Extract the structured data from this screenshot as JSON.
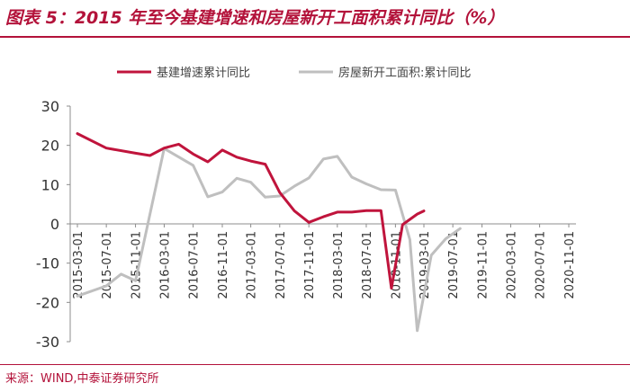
{
  "title": "图表 5：2015 年至今基建增速和房屋新开工面积累计同比（%）",
  "source": "来源：WIND,中泰证券研究所",
  "colors": {
    "accent": "#b3123a",
    "series1": "#c0143c",
    "series2": "#bfbfbf"
  },
  "chart_data": {
    "type": "line",
    "legend_position": "top",
    "grid": false,
    "ylim": [
      -30,
      30
    ],
    "yticks": [
      -30,
      -20,
      -10,
      0,
      10,
      20,
      30
    ],
    "xticks": [
      "2015-03-01",
      "2015-07-01",
      "2015-11-01",
      "2016-03-01",
      "2016-07-01",
      "2016-11-01",
      "2017-03-01",
      "2017-07-01",
      "2017-11-01",
      "2018-03-01",
      "2018-07-01",
      "2018-11-01",
      "2019-03-01",
      "2019-07-01",
      "2019-11-01",
      "2020-03-01",
      "2020-07-01",
      "2020-11-01"
    ],
    "series": [
      {
        "name": "基建增速累计同比",
        "points": [
          [
            "2015-03-01",
            23.0
          ],
          [
            "2015-07-01",
            19.3
          ],
          [
            "2015-11-01",
            18.0
          ],
          [
            "2016-01-01",
            17.4
          ],
          [
            "2016-03-01",
            19.3
          ],
          [
            "2016-05-01",
            20.3
          ],
          [
            "2016-07-01",
            17.8
          ],
          [
            "2016-09-01",
            15.8
          ],
          [
            "2016-11-01",
            18.8
          ],
          [
            "2017-01-01",
            17.0
          ],
          [
            "2017-03-01",
            16.0
          ],
          [
            "2017-05-01",
            15.2
          ],
          [
            "2017-07-01",
            8.0
          ],
          [
            "2017-09-01",
            3.3
          ],
          [
            "2017-11-01",
            0.4
          ],
          [
            "2018-01-01",
            1.8
          ],
          [
            "2018-03-01",
            3.0
          ],
          [
            "2018-05-01",
            3.0
          ],
          [
            "2018-07-01",
            3.4
          ],
          [
            "2018-09-01",
            3.4
          ],
          [
            "2018-10-15",
            -16.4
          ],
          [
            "2018-12-01",
            -0.2
          ],
          [
            "2019-02-01",
            2.5
          ],
          [
            "2019-03-01",
            3.3
          ]
        ]
      },
      {
        "name": "房屋新开工面积:累计同比",
        "points": [
          [
            "2015-03-01",
            -18.4
          ],
          [
            "2015-07-01",
            -15.8
          ],
          [
            "2015-09-01",
            -12.8
          ],
          [
            "2015-11-01",
            -14.5
          ],
          [
            "2016-03-01",
            19.2
          ],
          [
            "2016-07-01",
            14.9
          ],
          [
            "2016-09-01",
            6.9
          ],
          [
            "2016-11-01",
            8.1
          ],
          [
            "2017-01-01",
            11.6
          ],
          [
            "2017-03-01",
            10.6
          ],
          [
            "2017-05-01",
            6.8
          ],
          [
            "2017-07-01",
            7.1
          ],
          [
            "2017-09-01",
            9.6
          ],
          [
            "2017-11-01",
            11.7
          ],
          [
            "2018-01-01",
            16.5
          ],
          [
            "2018-03-01",
            17.2
          ],
          [
            "2018-05-01",
            11.9
          ],
          [
            "2018-07-01",
            10.2
          ],
          [
            "2018-09-01",
            8.7
          ],
          [
            "2018-11-01",
            8.6
          ],
          [
            "2019-01-01",
            -4.0
          ],
          [
            "2019-02-01",
            -27.2
          ],
          [
            "2019-04-01",
            -8.0
          ],
          [
            "2019-06-01",
            -3.8
          ],
          [
            "2019-08-01",
            -1.2
          ]
        ]
      }
    ]
  }
}
